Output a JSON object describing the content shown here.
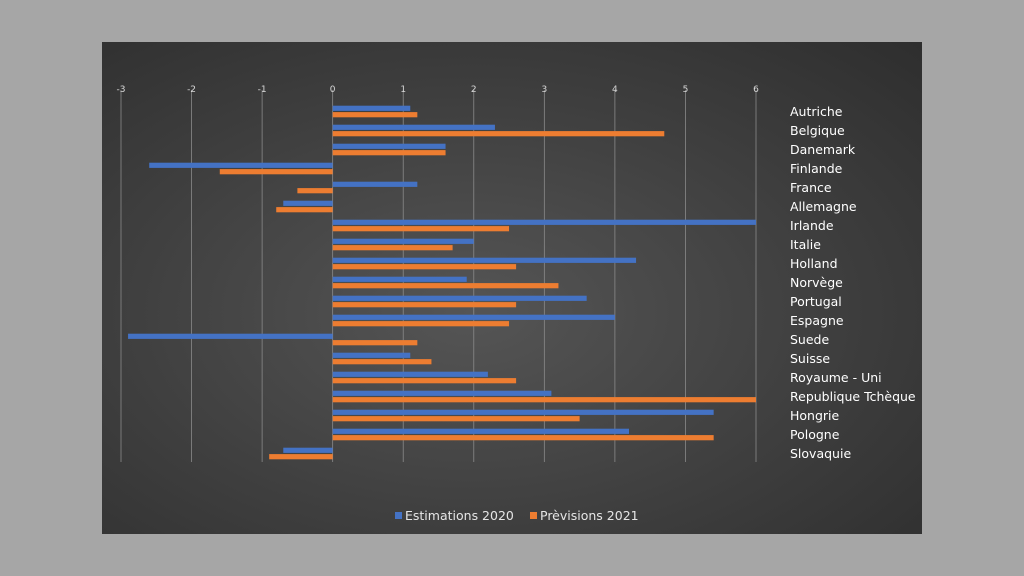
{
  "chart_data": {
    "type": "bar",
    "orientation": "horizontal",
    "xlim": [
      -3,
      6
    ],
    "x_ticks": [
      "-3",
      "-2",
      "-1",
      "0",
      "1",
      "2",
      "3",
      "4",
      "5",
      "6"
    ],
    "grid": true,
    "legend_position": "bottom",
    "categories": [
      "Autriche",
      "Belgique",
      "Danemark",
      "Finlande",
      "France",
      "Allemagne",
      "Irlande",
      "Italie",
      "Holland",
      "Norvège",
      "Portugal",
      "Espagne",
      "Suede",
      "Suisse",
      "Royaume - Uni",
      "Republique Tchèque",
      "Hongrie",
      "Pologne",
      "Slovaquie"
    ],
    "series": [
      {
        "name": "Estimations 2020",
        "color": "#4472c4",
        "values": [
          1.1,
          2.3,
          1.6,
          -2.6,
          1.2,
          -0.7,
          6.0,
          2.0,
          4.3,
          1.9,
          3.6,
          4.0,
          -2.9,
          1.1,
          2.2,
          3.1,
          5.4,
          4.2,
          -0.7
        ]
      },
      {
        "name": "Prèvisions 2021",
        "color": "#ed7d31",
        "values": [
          1.2,
          4.7,
          1.6,
          -1.6,
          -0.5,
          -0.8,
          2.5,
          1.7,
          2.6,
          3.2,
          2.6,
          2.5,
          1.2,
          1.4,
          2.6,
          6.0,
          3.5,
          5.4,
          -0.9
        ]
      }
    ]
  }
}
